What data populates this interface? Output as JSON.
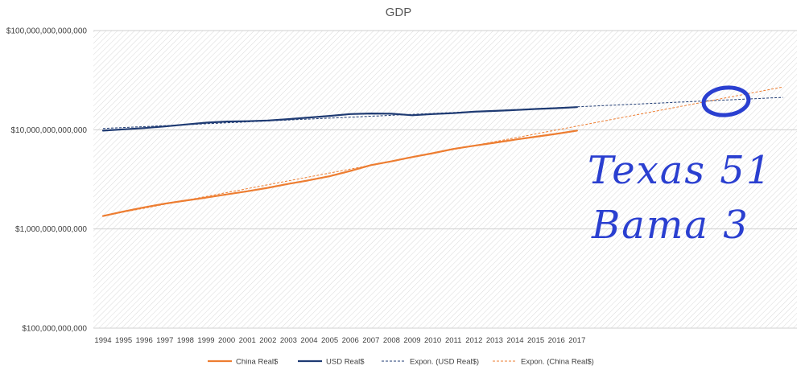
{
  "chart_data": {
    "type": "line",
    "title": "GDP",
    "yscale": "log",
    "ylim": [
      100000000000,
      100000000000000
    ],
    "yticks": [
      {
        "value": 100000000000,
        "label": "$100,000,000,000"
      },
      {
        "value": 1000000000000,
        "label": "$1,000,000,000,000"
      },
      {
        "value": 10000000000000,
        "label": "$10,000,000,000,000"
      },
      {
        "value": 100000000000000,
        "label": "$100,000,000,000,000"
      }
    ],
    "categories": [
      "1994",
      "1995",
      "1996",
      "1997",
      "1998",
      "1999",
      "2000",
      "2001",
      "2002",
      "2003",
      "2004",
      "2005",
      "2006",
      "2007",
      "2008",
      "2009",
      "2010",
      "2011",
      "2012",
      "2013",
      "2014",
      "2015",
      "2016",
      "2017"
    ],
    "forecast_periods": 10,
    "grid": "diagonal hatch fill",
    "legend_position": "bottom",
    "series": [
      {
        "name": "China Real$",
        "color": "#ED7D31",
        "values": [
          1350000000000.0,
          1500000000000.0,
          1650000000000.0,
          1800000000000.0,
          1930000000000.0,
          2070000000000.0,
          2230000000000.0,
          2400000000000.0,
          2600000000000.0,
          2850000000000.0,
          3100000000000.0,
          3400000000000.0,
          3850000000000.0,
          4400000000000.0,
          4800000000000.0,
          5300000000000.0,
          5800000000000.0,
          6400000000000.0,
          6900000000000.0,
          7400000000000.0,
          7950000000000.0,
          8500000000000.0,
          9100000000000.0,
          9800000000000.0
        ]
      },
      {
        "name": "USD Real$",
        "color": "#1F3B73",
        "values": [
          9800000000000.0,
          10100000000000.0,
          10400000000000.0,
          10800000000000.0,
          11300000000000.0,
          11800000000000.0,
          12100000000000.0,
          12200000000000.0,
          12400000000000.0,
          12800000000000.0,
          13300000000000.0,
          13800000000000.0,
          14400000000000.0,
          14600000000000.0,
          14500000000000.0,
          14000000000000.0,
          14400000000000.0,
          14700000000000.0,
          15200000000000.0,
          15500000000000.0,
          15800000000000.0,
          16200000000000.0,
          16500000000000.0,
          16900000000000.0
        ]
      }
    ],
    "trendlines": [
      {
        "name": "Expon. (USD Real$)",
        "type": "exponential",
        "color": "#1F3B73",
        "dash": true,
        "start": 10300000000000.0,
        "end": 21200000000000.0
      },
      {
        "name": "Expon. (China Real$)",
        "type": "exponential",
        "color": "#ED7D31",
        "dash": true,
        "start": 1350000000000.0,
        "end": 27000000000000.0
      }
    ],
    "legend": [
      {
        "label": "China Real$",
        "color": "#ED7D31",
        "dash": false
      },
      {
        "label": "USD Real$",
        "color": "#1F3B73",
        "dash": false
      },
      {
        "label": "Expon. (USD Real$)",
        "color": "#1F3B73",
        "dash": true
      },
      {
        "label": "Expon. (China Real$)",
        "color": "#ED7D31",
        "dash": true
      }
    ]
  },
  "annotations": {
    "color": "#2a3fd0",
    "lines": [
      "Texas 51",
      "Bama 3"
    ],
    "circle": "hand-drawn circle around trend intersection"
  }
}
